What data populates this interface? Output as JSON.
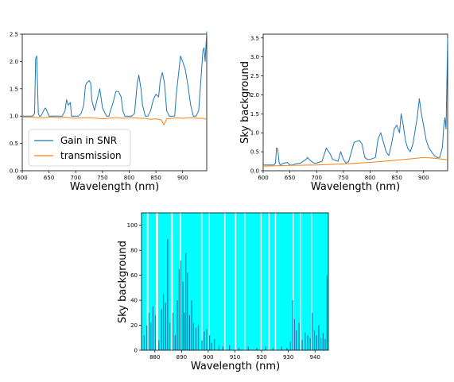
{
  "colors": {
    "blue": "#1f77b4",
    "orange": "#ff7f0e",
    "cyan": "#00ffff",
    "white": "#ffffff"
  },
  "chart_data": [
    {
      "type": "line",
      "xlabel": "Wavelength (nm)",
      "ylabel": "",
      "xlim": [
        600,
        945
      ],
      "ylim": [
        0,
        2.5
      ],
      "xticks": [
        600,
        650,
        700,
        750,
        800,
        850,
        900
      ],
      "yticks": [
        0.0,
        0.5,
        1.0,
        1.5,
        2.0,
        2.5
      ],
      "ytick_labels": [
        "0.0",
        "0.5",
        "1.0",
        "1.5",
        "2.0",
        "2.5"
      ],
      "legend": {
        "placement": "lower-left",
        "entries": [
          "Gain in SNR",
          "transmission"
        ]
      },
      "series": [
        {
          "name": "Gain in SNR",
          "color": "#1f77b4",
          "x": [
            600,
            620,
            623,
            625,
            627,
            630,
            632,
            635,
            640,
            643,
            645,
            648,
            650,
            655,
            660,
            670,
            675,
            680,
            683,
            686,
            690,
            692,
            695,
            700,
            705,
            710,
            715,
            718,
            720,
            725,
            728,
            730,
            735,
            740,
            745,
            750,
            755,
            758,
            762,
            765,
            770,
            775,
            780,
            785,
            788,
            792,
            796,
            800,
            805,
            810,
            815,
            818,
            822,
            825,
            830,
            835,
            840,
            845,
            850,
            855,
            858,
            862,
            866,
            870,
            875,
            880,
            885,
            888,
            892,
            896,
            900,
            905,
            910,
            915,
            920,
            925,
            930,
            935,
            938,
            940,
            942,
            945
          ],
          "y": [
            1.0,
            1.0,
            1.05,
            2.05,
            2.1,
            1.05,
            1.0,
            1.0,
            1.1,
            1.15,
            1.12,
            1.05,
            1.0,
            1.0,
            1.0,
            1.0,
            1.0,
            1.1,
            1.3,
            1.2,
            1.25,
            1.0,
            1.0,
            1.0,
            1.0,
            1.05,
            1.2,
            1.55,
            1.6,
            1.65,
            1.6,
            1.3,
            1.1,
            1.3,
            1.5,
            1.15,
            1.05,
            1.0,
            1.0,
            1.1,
            1.25,
            1.45,
            1.45,
            1.35,
            1.1,
            1.0,
            1.0,
            1.0,
            1.0,
            1.05,
            1.6,
            1.75,
            1.5,
            1.2,
            1.0,
            1.0,
            1.1,
            1.3,
            1.4,
            1.35,
            1.65,
            1.8,
            1.6,
            1.1,
            1.0,
            1.0,
            1.0,
            1.4,
            1.75,
            2.1,
            2.0,
            1.85,
            1.55,
            1.2,
            1.0,
            1.0,
            1.1,
            1.8,
            2.2,
            2.25,
            2.0,
            2.55
          ]
        },
        {
          "name": "transmission",
          "color": "#ff7f0e",
          "x": [
            600,
            620,
            630,
            640,
            650,
            660,
            670,
            680,
            690,
            700,
            710,
            720,
            730,
            740,
            750,
            760,
            770,
            780,
            790,
            800,
            810,
            820,
            830,
            840,
            850,
            860,
            865,
            870,
            880,
            890,
            900,
            910,
            920,
            930,
            940,
            945
          ],
          "y": [
            0.98,
            0.98,
            0.97,
            0.97,
            0.98,
            0.98,
            0.97,
            0.98,
            0.97,
            0.96,
            0.97,
            0.97,
            0.97,
            0.96,
            0.95,
            0.96,
            0.97,
            0.97,
            0.96,
            0.97,
            0.97,
            0.96,
            0.96,
            0.94,
            0.95,
            0.93,
            0.84,
            0.95,
            0.96,
            0.97,
            0.96,
            0.97,
            0.97,
            0.96,
            0.96,
            0.93
          ]
        }
      ]
    },
    {
      "type": "line",
      "xlabel": "Wavelength (nm)",
      "ylabel": "Sky background",
      "xlim": [
        600,
        945
      ],
      "ylim": [
        0,
        3.6
      ],
      "xticks": [
        600,
        650,
        700,
        750,
        800,
        850,
        900
      ],
      "yticks": [
        0.0,
        0.5,
        1.0,
        1.5,
        2.0,
        2.5,
        3.0,
        3.5
      ],
      "ytick_labels": [
        "0.0",
        "0.5",
        "1.0",
        "1.5",
        "2.0",
        "2.5",
        "3.0",
        "3.5"
      ],
      "series": [
        {
          "color": "#1f77b4",
          "x": [
            600,
            620,
            623,
            625,
            627,
            630,
            632,
            635,
            640,
            645,
            650,
            655,
            660,
            670,
            680,
            683,
            686,
            690,
            695,
            700,
            710,
            718,
            720,
            725,
            730,
            740,
            745,
            750,
            755,
            760,
            765,
            770,
            780,
            785,
            790,
            795,
            800,
            810,
            815,
            820,
            825,
            830,
            835,
            840,
            845,
            850,
            855,
            858,
            862,
            866,
            870,
            875,
            880,
            888,
            892,
            896,
            900,
            905,
            910,
            915,
            920,
            925,
            930,
            935,
            938,
            940,
            942,
            945
          ],
          "y": [
            0.15,
            0.15,
            0.2,
            0.6,
            0.58,
            0.2,
            0.15,
            0.18,
            0.2,
            0.22,
            0.15,
            0.15,
            0.18,
            0.2,
            0.3,
            0.35,
            0.3,
            0.25,
            0.2,
            0.2,
            0.25,
            0.6,
            0.55,
            0.45,
            0.3,
            0.25,
            0.5,
            0.3,
            0.2,
            0.25,
            0.5,
            0.75,
            0.8,
            0.7,
            0.35,
            0.3,
            0.3,
            0.35,
            0.85,
            1.0,
            0.75,
            0.5,
            0.4,
            0.7,
            1.1,
            1.2,
            1.0,
            1.5,
            1.2,
            0.8,
            0.6,
            0.5,
            0.7,
            1.4,
            1.9,
            1.5,
            1.2,
            0.8,
            0.6,
            0.5,
            0.4,
            0.35,
            0.35,
            0.6,
            1.2,
            1.4,
            1.1,
            3.5
          ]
        },
        {
          "color": "#ff7f0e",
          "x": [
            600,
            650,
            700,
            750,
            800,
            850,
            880,
            900,
            920,
            940,
            945
          ],
          "y": [
            0.12,
            0.14,
            0.15,
            0.18,
            0.22,
            0.28,
            0.32,
            0.35,
            0.33,
            0.3,
            0.28
          ]
        }
      ]
    },
    {
      "type": "bar",
      "xlabel": "Wavelength (nm)",
      "ylabel": "Sky background",
      "xlim": [
        875,
        945
      ],
      "ylim": [
        0,
        110
      ],
      "xticks": [
        880,
        890,
        900,
        910,
        920,
        930,
        940
      ],
      "yticks": [
        0,
        20,
        40,
        60,
        80,
        100
      ],
      "background_color": "#00ffff",
      "white_bands_nm": [
        [
          877.0,
          877.6
        ],
        [
          880.4,
          881.2
        ],
        [
          886.0,
          886.7
        ],
        [
          889.3,
          889.8
        ],
        [
          897.3,
          897.8
        ],
        [
          900.2,
          900.6
        ],
        [
          906.0,
          906.4
        ],
        [
          910.0,
          910.5
        ],
        [
          913.5,
          913.9
        ],
        [
          919.6,
          920.0
        ],
        [
          922.6,
          923.0
        ],
        [
          925.0,
          925.4
        ],
        [
          931.6,
          932.0
        ],
        [
          934.4,
          934.8
        ],
        [
          938.5,
          938.9
        ]
      ],
      "values_x": [
        876.0,
        877.0,
        877.8,
        878.5,
        879.3,
        880.2,
        881.5,
        882.5,
        883.2,
        884.0,
        884.8,
        885.6,
        886.8,
        887.6,
        888.4,
        889.1,
        889.7,
        890.5,
        891.0,
        891.6,
        892.2,
        893.0,
        893.8,
        894.5,
        895.4,
        896.3,
        897.6,
        898.5,
        899.4,
        900.5,
        901.2,
        902.3,
        904.0,
        905.5,
        908.0,
        911.5,
        915.0,
        918.2,
        921.5,
        924.3,
        927.5,
        929.5,
        930.8,
        931.6,
        932.3,
        933.0,
        934.0,
        935.2,
        936.3,
        937.3,
        938.2,
        939.0,
        939.8,
        940.6,
        941.4,
        942.2,
        943.0,
        943.8,
        944.5
      ],
      "values_y": [
        12,
        20,
        30,
        22,
        35,
        28,
        8,
        33,
        45,
        38,
        89,
        22,
        30,
        12,
        40,
        65,
        72,
        55,
        30,
        78,
        62,
        28,
        40,
        22,
        18,
        20,
        8,
        15,
        17,
        12,
        6,
        9,
        4,
        3,
        4,
        2,
        3,
        2,
        3,
        2,
        3,
        2,
        7,
        40,
        25,
        16,
        22,
        8,
        14,
        12,
        10,
        30,
        16,
        12,
        20,
        10,
        14,
        9,
        60
      ]
    }
  ]
}
